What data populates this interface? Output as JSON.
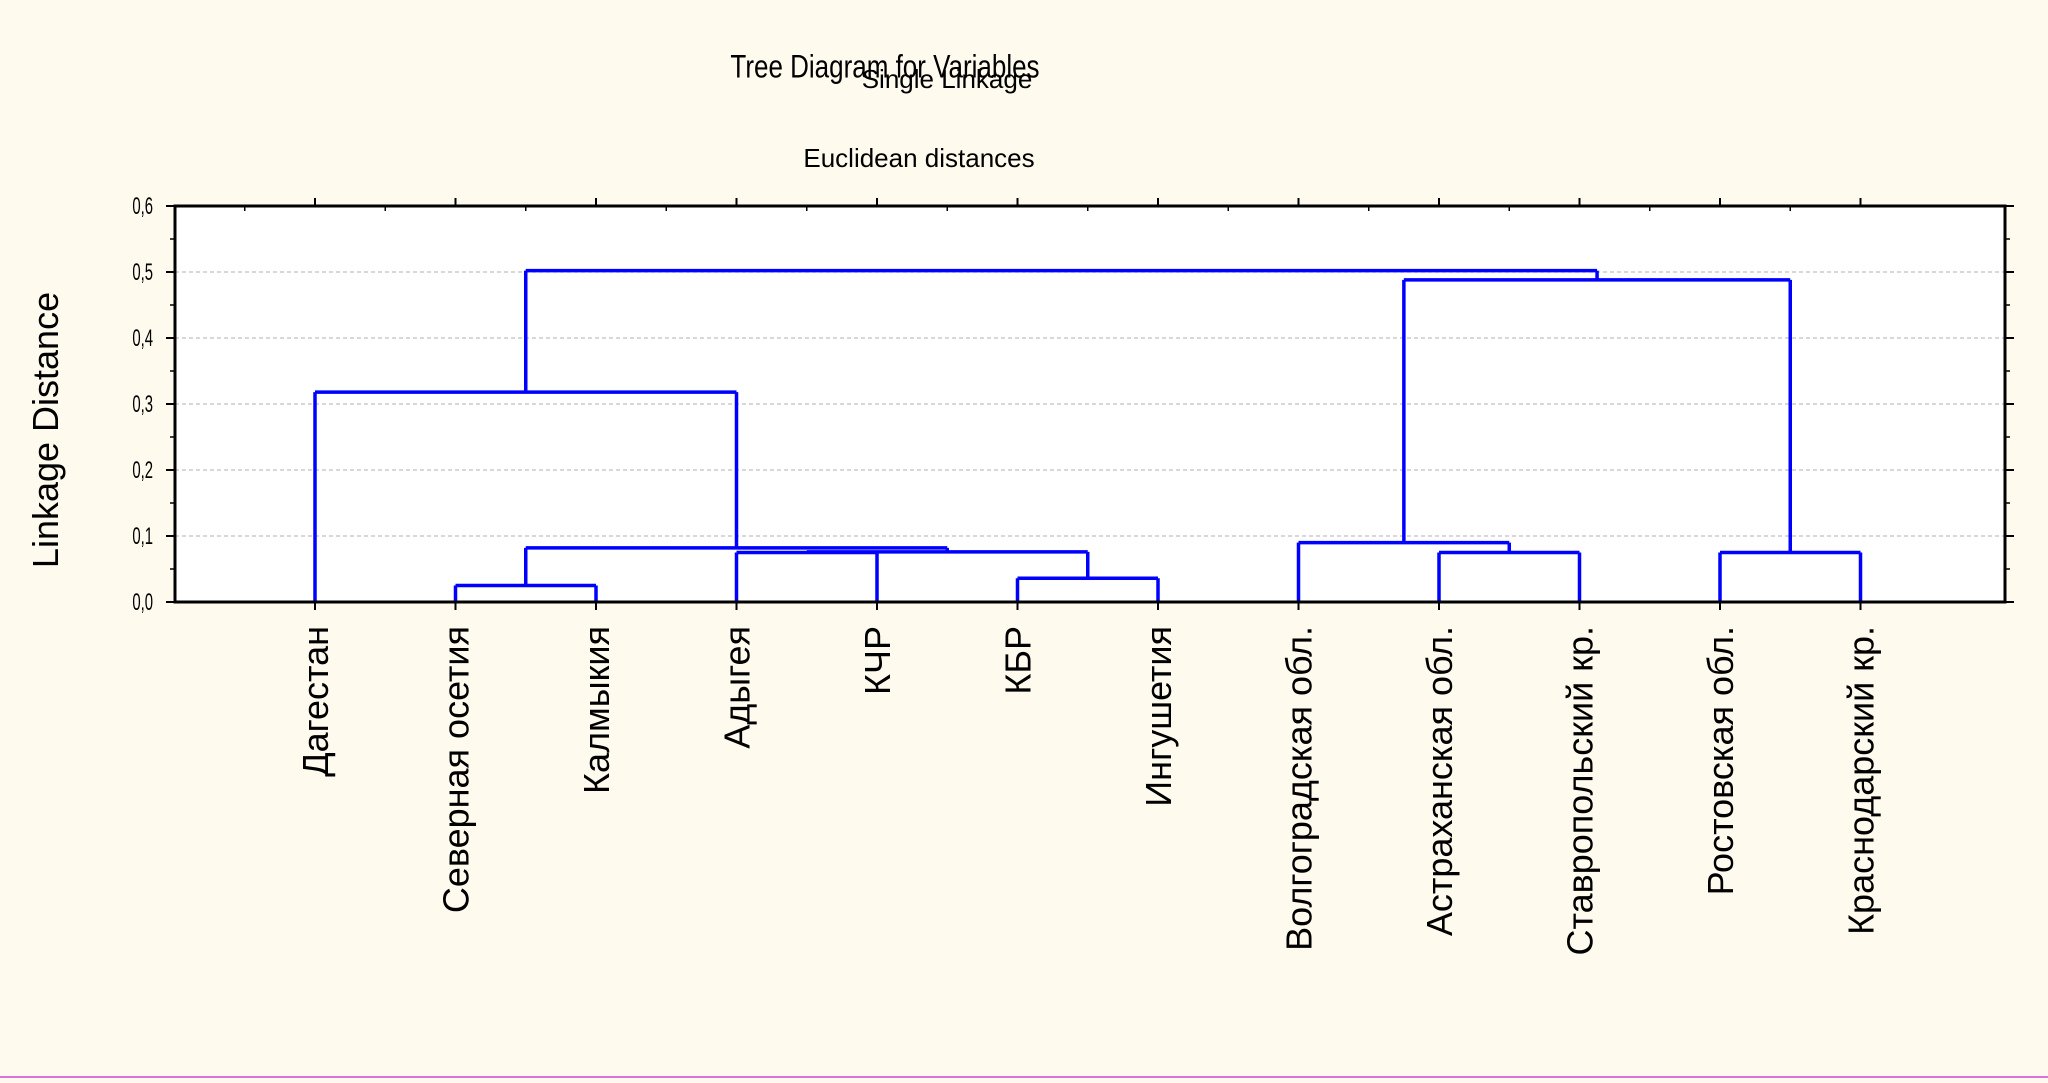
{
  "chart_data": {
    "type": "dendrogram",
    "title": "Tree Diagram for  Variables",
    "subtitle": "Single Linkage",
    "subtitle2": "Euclidean distances",
    "ylabel": "Linkage Distance",
    "ylim": [
      0,
      0.6
    ],
    "yticks": [
      0.0,
      0.1,
      0.2,
      0.3,
      0.4,
      0.5,
      0.6
    ],
    "ytick_labels": [
      "0,0",
      "0,1",
      "0,2",
      "0,3",
      "0,4",
      "0,5",
      "0,6"
    ],
    "grid": true,
    "line_color": "#0000ff",
    "leaves": [
      "Дагестан",
      "Северная осетия",
      "Калмыкия",
      "Адыгея",
      "КЧР",
      "КБР",
      "Ингушетия",
      "Волгоградская обл.",
      "Астраханская обл.",
      "Ставропольский кр.",
      "Ростовская обл.",
      "Краснодарский кр."
    ],
    "merges": [
      {
        "left": "L1",
        "right": "L2",
        "height": 0.025
      },
      {
        "left": "L5",
        "right": "L6",
        "height": 0.036
      },
      {
        "left": "L3",
        "right": "L4",
        "height": 0.075
      },
      {
        "left": "L8",
        "right": "L9",
        "height": 0.075
      },
      {
        "left": "L10",
        "right": "L11",
        "height": 0.075
      },
      {
        "left": "M2",
        "right": "M1",
        "height": 0.076
      },
      {
        "left": "M0",
        "right": "M5",
        "height": 0.082
      },
      {
        "left": "L7",
        "right": "M3",
        "height": 0.09
      },
      {
        "left": "L0",
        "right": "M6",
        "height": 0.318
      },
      {
        "left": "M7",
        "right": "M4",
        "height": 0.488
      },
      {
        "left": "M8",
        "right": "M9",
        "height": 0.502
      }
    ]
  },
  "colors": {
    "background": "#fefaee",
    "plot_background": "#ffffff",
    "lines": "#0000ff",
    "grid": "#c0c0c0"
  }
}
